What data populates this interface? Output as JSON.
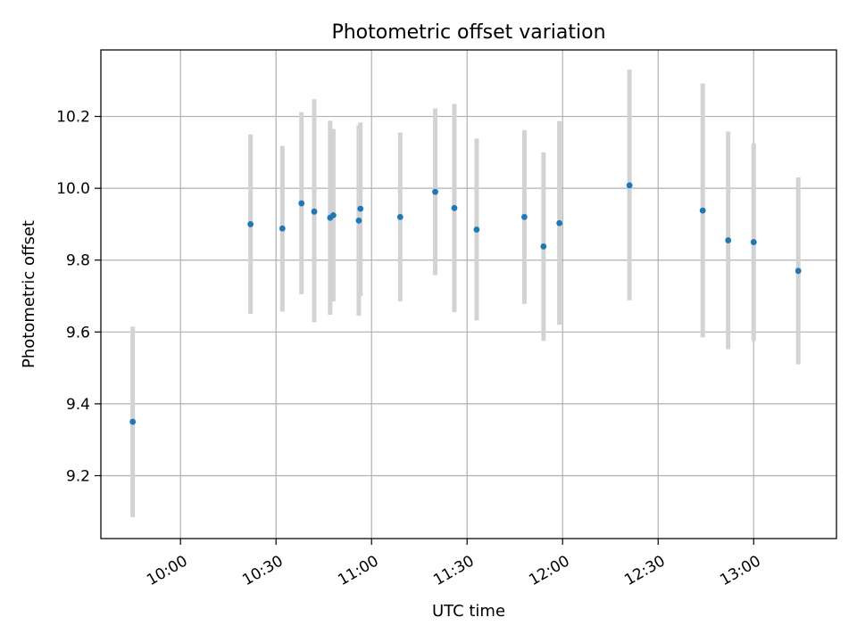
{
  "chart_data": {
    "type": "scatter",
    "title": "Photometric offset variation",
    "xlabel": "UTC time",
    "ylabel": "Photometric offset",
    "xlim": [
      "09:35",
      "13:26"
    ],
    "ylim": [
      9.025,
      10.385
    ],
    "xticks": [
      "10:00",
      "10:30",
      "11:00",
      "11:30",
      "12:00",
      "12:30",
      "13:00"
    ],
    "yticks": [
      9.2,
      9.4,
      9.6,
      9.8,
      10.0,
      10.2
    ],
    "ytick_labels": [
      "9.2",
      "9.4",
      "9.6",
      "9.8",
      "10.0",
      "10.2"
    ],
    "grid": true,
    "point_color": "#1f77b4",
    "errorbar_color": "#d3d3d3",
    "points": [
      {
        "x": "09:45",
        "y": 9.35,
        "ylow": 9.085,
        "yhigh": 9.615
      },
      {
        "x": "10:22",
        "y": 9.9,
        "ylow": 9.65,
        "yhigh": 10.15
      },
      {
        "x": "10:32",
        "y": 9.888,
        "ylow": 9.657,
        "yhigh": 10.118
      },
      {
        "x": "10:38",
        "y": 9.958,
        "ylow": 9.705,
        "yhigh": 10.212
      },
      {
        "x": "10:42",
        "y": 9.935,
        "ylow": 9.627,
        "yhigh": 10.248
      },
      {
        "x": "10:47",
        "y": 9.918,
        "ylow": 9.648,
        "yhigh": 10.188
      },
      {
        "x": "10:48",
        "y": 9.925,
        "ylow": 9.685,
        "yhigh": 10.165
      },
      {
        "x": "10:56",
        "y": 9.91,
        "ylow": 9.645,
        "yhigh": 10.175
      },
      {
        "x": "10:56.5",
        "y": 9.943,
        "ylow": 9.7,
        "yhigh": 10.183
      },
      {
        "x": "11:09",
        "y": 9.92,
        "ylow": 9.685,
        "yhigh": 10.155
      },
      {
        "x": "11:20",
        "y": 9.99,
        "ylow": 9.758,
        "yhigh": 10.222
      },
      {
        "x": "11:26",
        "y": 9.945,
        "ylow": 9.655,
        "yhigh": 10.235
      },
      {
        "x": "11:33",
        "y": 9.885,
        "ylow": 9.632,
        "yhigh": 10.138
      },
      {
        "x": "11:48",
        "y": 9.92,
        "ylow": 9.678,
        "yhigh": 10.162
      },
      {
        "x": "11:54",
        "y": 9.838,
        "ylow": 9.575,
        "yhigh": 10.1
      },
      {
        "x": "11:59",
        "y": 9.903,
        "ylow": 9.62,
        "yhigh": 10.187
      },
      {
        "x": "12:21",
        "y": 10.008,
        "ylow": 9.688,
        "yhigh": 10.33
      },
      {
        "x": "12:44",
        "y": 9.938,
        "ylow": 9.585,
        "yhigh": 10.292
      },
      {
        "x": "12:52",
        "y": 9.855,
        "ylow": 9.552,
        "yhigh": 10.158
      },
      {
        "x": "13:00",
        "y": 9.85,
        "ylow": 9.575,
        "yhigh": 10.125
      },
      {
        "x": "13:14",
        "y": 9.77,
        "ylow": 9.51,
        "yhigh": 10.03
      }
    ]
  }
}
